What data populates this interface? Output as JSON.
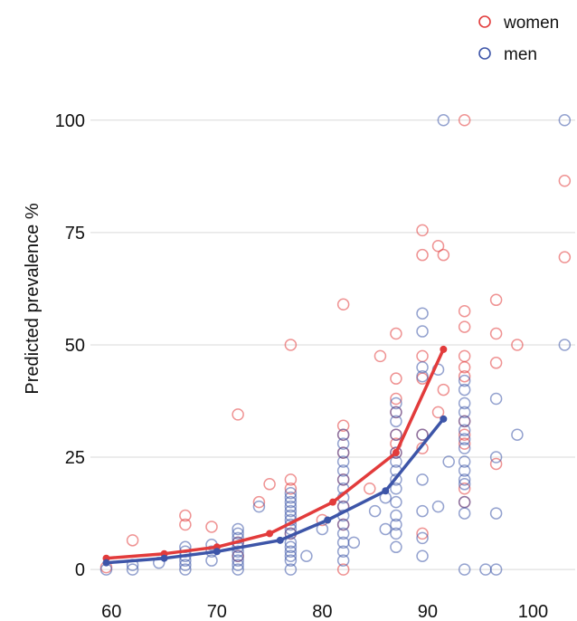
{
  "chart_data": {
    "type": "scatter",
    "title": "",
    "xlabel": "",
    "ylabel": "Predicted prevalence %",
    "xlim": [
      58,
      104
    ],
    "ylim": [
      -3,
      106
    ],
    "xticks": [
      60,
      70,
      80,
      90,
      100
    ],
    "yticks": [
      0,
      25,
      50,
      75,
      100
    ],
    "grid": "horizontal",
    "legend": "top-right",
    "series": [
      {
        "name": "women",
        "color": "#e23b3b",
        "marker": "open-circle",
        "points": [
          [
            59.5,
            0.5
          ],
          [
            62,
            6.5
          ],
          [
            67,
            12
          ],
          [
            67,
            10
          ],
          [
            69.5,
            9.5
          ],
          [
            72,
            34.5
          ],
          [
            72,
            6
          ],
          [
            72,
            3
          ],
          [
            74,
            15
          ],
          [
            75,
            19
          ],
          [
            77,
            50
          ],
          [
            77,
            20
          ],
          [
            77,
            18
          ],
          [
            77,
            8
          ],
          [
            80,
            11
          ],
          [
            82,
            59
          ],
          [
            82,
            32
          ],
          [
            82,
            30
          ],
          [
            82,
            26
          ],
          [
            82,
            20
          ],
          [
            82,
            14
          ],
          [
            82,
            10
          ],
          [
            82,
            0
          ],
          [
            84.5,
            18
          ],
          [
            85.5,
            47.5
          ],
          [
            87,
            52.5
          ],
          [
            87,
            42.5
          ],
          [
            87,
            38
          ],
          [
            87,
            35
          ],
          [
            87,
            30
          ],
          [
            87,
            28
          ],
          [
            87,
            26
          ],
          [
            89.5,
            75.5
          ],
          [
            89.5,
            70
          ],
          [
            89.5,
            47.5
          ],
          [
            89.5,
            42.5
          ],
          [
            89.5,
            30
          ],
          [
            89.5,
            27
          ],
          [
            89.5,
            8
          ],
          [
            91,
            72
          ],
          [
            91.5,
            70
          ],
          [
            91.5,
            40
          ],
          [
            91,
            35
          ],
          [
            93.5,
            100
          ],
          [
            93.5,
            57.5
          ],
          [
            93.5,
            54
          ],
          [
            93.5,
            47.5
          ],
          [
            93.5,
            45
          ],
          [
            93.5,
            43
          ],
          [
            93.5,
            33
          ],
          [
            93.5,
            30
          ],
          [
            93.5,
            28
          ],
          [
            93.5,
            18
          ],
          [
            93.5,
            15
          ],
          [
            96.5,
            60
          ],
          [
            96.5,
            52.5
          ],
          [
            96.5,
            46
          ],
          [
            96.5,
            23.5
          ],
          [
            98.5,
            50
          ],
          [
            103,
            86.5
          ],
          [
            103,
            69.5
          ]
        ],
        "fit": [
          [
            59.5,
            2.5
          ],
          [
            65,
            3.5
          ],
          [
            70,
            5
          ],
          [
            75,
            8
          ],
          [
            81,
            15
          ],
          [
            87,
            26
          ],
          [
            91.5,
            49
          ]
        ]
      },
      {
        "name": "men",
        "color": "#3d55a8",
        "marker": "open-circle",
        "points": [
          [
            59.5,
            0
          ],
          [
            62,
            0
          ],
          [
            62,
            1
          ],
          [
            64.5,
            1.5
          ],
          [
            67,
            0
          ],
          [
            67,
            1
          ],
          [
            67,
            2
          ],
          [
            67,
            3
          ],
          [
            67,
            4
          ],
          [
            67,
            5
          ],
          [
            69.5,
            2
          ],
          [
            69.5,
            4
          ],
          [
            69.5,
            5.5
          ],
          [
            72,
            0
          ],
          [
            72,
            1
          ],
          [
            72,
            2
          ],
          [
            72,
            3
          ],
          [
            72,
            4
          ],
          [
            72,
            5
          ],
          [
            72,
            6
          ],
          [
            72,
            7
          ],
          [
            72,
            8
          ],
          [
            72,
            9
          ],
          [
            74,
            14
          ],
          [
            77,
            0
          ],
          [
            77,
            2
          ],
          [
            77,
            3
          ],
          [
            77,
            4
          ],
          [
            77,
            5
          ],
          [
            77,
            6
          ],
          [
            77,
            8
          ],
          [
            77,
            9
          ],
          [
            77,
            10
          ],
          [
            77,
            11
          ],
          [
            77,
            12
          ],
          [
            77,
            13
          ],
          [
            77,
            14
          ],
          [
            77,
            15
          ],
          [
            77,
            16
          ],
          [
            77,
            17
          ],
          [
            78.5,
            3
          ],
          [
            80,
            9
          ],
          [
            82,
            2
          ],
          [
            82,
            4
          ],
          [
            82,
            6
          ],
          [
            82,
            8
          ],
          [
            82,
            10
          ],
          [
            82,
            12
          ],
          [
            82,
            14
          ],
          [
            82,
            16
          ],
          [
            82,
            18
          ],
          [
            82,
            20
          ],
          [
            82,
            22
          ],
          [
            82,
            24
          ],
          [
            82,
            26
          ],
          [
            82,
            28
          ],
          [
            82,
            30
          ],
          [
            83,
            6
          ],
          [
            85,
            13
          ],
          [
            86,
            16
          ],
          [
            86,
            9
          ],
          [
            87,
            5
          ],
          [
            87,
            8
          ],
          [
            87,
            10
          ],
          [
            87,
            12
          ],
          [
            87,
            15
          ],
          [
            87,
            18
          ],
          [
            87,
            20
          ],
          [
            87,
            22
          ],
          [
            87,
            24
          ],
          [
            87,
            26
          ],
          [
            87,
            30
          ],
          [
            87,
            33
          ],
          [
            87,
            35
          ],
          [
            87,
            37
          ],
          [
            89.5,
            3
          ],
          [
            89.5,
            7
          ],
          [
            89.5,
            13
          ],
          [
            89.5,
            20
          ],
          [
            89.5,
            30
          ],
          [
            89.5,
            43
          ],
          [
            89.5,
            45
          ],
          [
            89.5,
            53
          ],
          [
            89.5,
            57
          ],
          [
            91,
            14
          ],
          [
            91,
            44.5
          ],
          [
            91.5,
            100
          ],
          [
            92,
            24
          ],
          [
            93.5,
            0
          ],
          [
            93.5,
            12.5
          ],
          [
            93.5,
            15
          ],
          [
            93.5,
            19
          ],
          [
            93.5,
            20
          ],
          [
            93.5,
            22
          ],
          [
            93.5,
            24
          ],
          [
            93.5,
            27
          ],
          [
            93.5,
            29
          ],
          [
            93.5,
            31
          ],
          [
            93.5,
            33
          ],
          [
            93.5,
            35
          ],
          [
            93.5,
            37
          ],
          [
            93.5,
            40
          ],
          [
            93.5,
            42
          ],
          [
            95.5,
            0
          ],
          [
            96.5,
            0
          ],
          [
            96.5,
            12.5
          ],
          [
            96.5,
            25
          ],
          [
            96.5,
            38
          ],
          [
            98.5,
            30
          ],
          [
            103,
            100
          ],
          [
            103,
            50
          ]
        ],
        "fit": [
          [
            59.5,
            1.5
          ],
          [
            65,
            2.5
          ],
          [
            70,
            4
          ],
          [
            76,
            6.5
          ],
          [
            80.5,
            11
          ],
          [
            86,
            17.5
          ],
          [
            91.5,
            33.5
          ]
        ]
      }
    ]
  }
}
